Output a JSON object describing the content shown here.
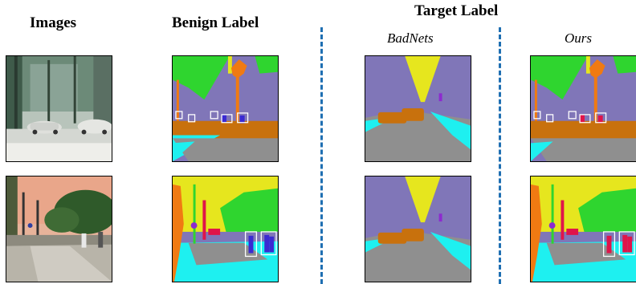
{
  "headers": {
    "images": "Images",
    "benign": "Benign Label",
    "target": "Target Label",
    "badnets": "BadNets",
    "ours": "Ours"
  },
  "palette": {
    "sky": "#8076b8",
    "vegetation": "#2fd52f",
    "tree_orange": "#f07a12",
    "car": "#c8710d",
    "road": "#8f8f8f",
    "sidewalk": "#1ef0f0",
    "building_yellow": "#e6e61e",
    "person": "#e0144a",
    "rider": "#3a2ad2",
    "box": "#ffffff",
    "divider": "#1f6fb2"
  }
}
